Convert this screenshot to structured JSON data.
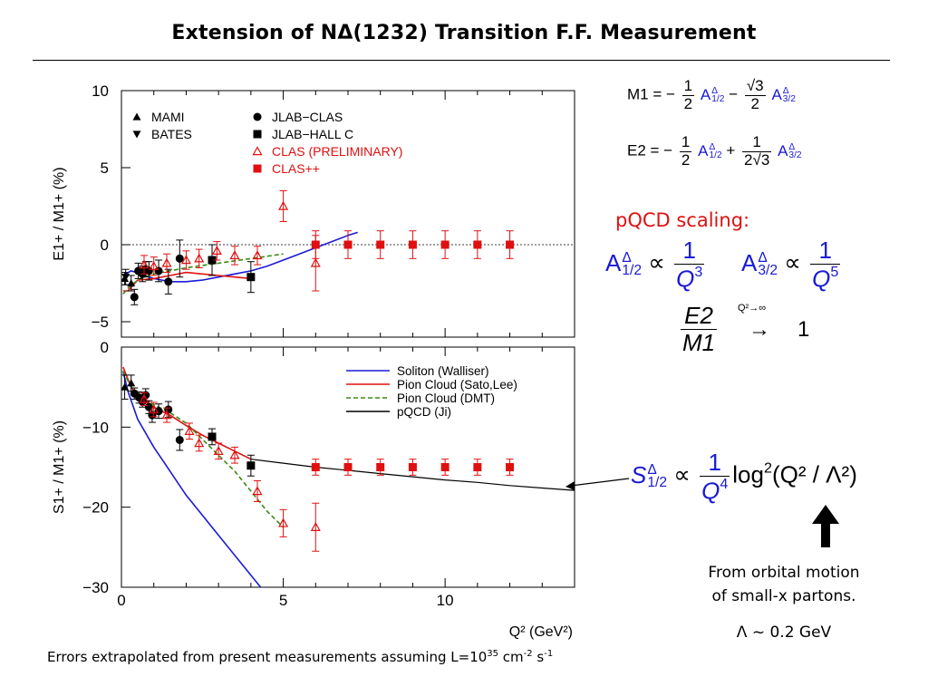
{
  "slide": {
    "title": "Extension of NΔ(1232) Transition F.F. Measurement",
    "footer_pre": "Errors extrapolated from present measurements assuming L=10",
    "footer_exp1": "35",
    "footer_mid": " cm",
    "footer_exp2": "-2",
    "footer_mid2": " s",
    "footer_exp3": "-1"
  },
  "equations": {
    "m1_lhs": "M1 = −",
    "e2_lhs": "E2 = −",
    "half_num": "1",
    "half_den": "2",
    "sqrt3_num": "√3",
    "amp_symbol": "A",
    "delta": "Δ",
    "sub_half": "1/2",
    "sub_threehalf": "3/2",
    "minus": "−",
    "plus": "+",
    "one": "1",
    "two_sqrt3": "2√3",
    "pqcd_scaling": "pQCD scaling:",
    "propto": "∝",
    "q3": "Q",
    "q3_exp": "3",
    "q5_exp": "5",
    "q4_exp": "4",
    "ratio_num": "E2",
    "ratio_den": "M1",
    "limit_label": "Q²→∞",
    "arrow": "→",
    "limit_value": "1",
    "s_symbol": "S",
    "log_text": "log",
    "log_exp": "2",
    "log_arg": "(Q² / Λ²)",
    "orbital_line1": "From orbital motion",
    "orbital_line2": "of small-x partons.",
    "lambda_value": "Λ ~ 0.2 GeV"
  },
  "chart_data": [
    {
      "type": "scatter",
      "ylabel": "E1+ / M1+ (%)",
      "ylim": [
        -6,
        10
      ],
      "xlim": [
        0,
        14
      ],
      "yticks": [
        10,
        5,
        0,
        -5
      ],
      "legend": [
        {
          "name": "MAMI",
          "marker": "triangle-up",
          "color": "#000000"
        },
        {
          "name": "BATES",
          "marker": "triangle-down",
          "color": "#000000"
        },
        {
          "name": "JLAB−CLAS",
          "marker": "circle",
          "color": "#000000"
        },
        {
          "name": "JLAB−HALL C",
          "marker": "square",
          "color": "#000000"
        },
        {
          "name": "CLAS (PRELIMINARY)",
          "marker": "triangle-open",
          "color": "#e01010"
        },
        {
          "name": "CLAS++",
          "marker": "square",
          "color": "#e01010"
        }
      ],
      "points": [
        {
          "marker": "triangle-up",
          "color": "#000000",
          "x": 0.1,
          "y": -2.2,
          "err": 0.4
        },
        {
          "marker": "triangle-down",
          "color": "#000000",
          "x": 0.13,
          "y": -2.1,
          "err": 0.5
        },
        {
          "marker": "triangle-up",
          "color": "#000000",
          "x": 0.3,
          "y": -2.5,
          "err": 0.5
        },
        {
          "marker": "circle",
          "color": "#000000",
          "x": 0.4,
          "y": -3.4,
          "err": 0.5
        },
        {
          "marker": "circle",
          "color": "#000000",
          "x": 0.52,
          "y": -1.7,
          "err": 0.5
        },
        {
          "marker": "circle",
          "color": "#000000",
          "x": 0.65,
          "y": -1.9,
          "err": 0.5
        },
        {
          "marker": "circle",
          "color": "#000000",
          "x": 0.75,
          "y": -1.6,
          "err": 0.5
        },
        {
          "marker": "circle",
          "color": "#000000",
          "x": 0.85,
          "y": -1.7,
          "err": 0.6
        },
        {
          "marker": "circle",
          "color": "#000000",
          "x": 1.15,
          "y": -1.7,
          "err": 0.7
        },
        {
          "marker": "circle",
          "color": "#000000",
          "x": 1.45,
          "y": -2.4,
          "err": 0.8
        },
        {
          "marker": "circle",
          "color": "#000000",
          "x": 1.8,
          "y": -0.9,
          "err": 1.2
        },
        {
          "marker": "square",
          "color": "#000000",
          "x": 2.8,
          "y": -1.0,
          "err": 1.0
        },
        {
          "marker": "square",
          "color": "#000000",
          "x": 4.0,
          "y": -2.1,
          "err": 1.0
        },
        {
          "marker": "triangle-open",
          "color": "#e01010",
          "x": 0.7,
          "y": -1.3,
          "err": 0.6
        },
        {
          "marker": "triangle-open",
          "color": "#e01010",
          "x": 1.0,
          "y": -1.4,
          "err": 0.6
        },
        {
          "marker": "triangle-open",
          "color": "#e01010",
          "x": 1.4,
          "y": -1.2,
          "err": 0.6
        },
        {
          "marker": "triangle-open",
          "color": "#e01010",
          "x": 2.0,
          "y": -1.0,
          "err": 0.6
        },
        {
          "marker": "triangle-open",
          "color": "#e01010",
          "x": 2.4,
          "y": -0.9,
          "err": 0.6
        },
        {
          "marker": "triangle-open",
          "color": "#e01010",
          "x": 2.95,
          "y": -0.4,
          "err": 0.6
        },
        {
          "marker": "triangle-open",
          "color": "#e01010",
          "x": 3.5,
          "y": -0.7,
          "err": 0.6
        },
        {
          "marker": "triangle-open",
          "color": "#e01010",
          "x": 4.2,
          "y": -0.7,
          "err": 0.6
        },
        {
          "marker": "triangle-open",
          "color": "#e01010",
          "x": 5.0,
          "y": 2.5,
          "err": 1.0
        },
        {
          "marker": "triangle-open",
          "color": "#e01010",
          "x": 6.0,
          "y": -1.2,
          "err": 1.8
        },
        {
          "marker": "square",
          "color": "#e01010",
          "x": 6.0,
          "y": 0.0,
          "err": 0.9
        },
        {
          "marker": "square",
          "color": "#e01010",
          "x": 7.0,
          "y": 0.0,
          "err": 0.9
        },
        {
          "marker": "square",
          "color": "#e01010",
          "x": 8.0,
          "y": 0.0,
          "err": 0.9
        },
        {
          "marker": "square",
          "color": "#e01010",
          "x": 9.0,
          "y": 0.0,
          "err": 0.9
        },
        {
          "marker": "square",
          "color": "#e01010",
          "x": 10.0,
          "y": 0.0,
          "err": 0.9
        },
        {
          "marker": "square",
          "color": "#e01010",
          "x": 11.0,
          "y": 0.0,
          "err": 0.9
        },
        {
          "marker": "square",
          "color": "#e01010",
          "x": 12.0,
          "y": 0.0,
          "err": 0.9
        }
      ],
      "curves": [
        {
          "model": "soliton",
          "color": "#1a1ad6",
          "dash": "",
          "x": [
            0.05,
            0.3,
            0.6,
            1.0,
            1.5,
            2.0,
            2.5,
            3.0,
            3.5,
            4.0,
            4.5,
            5.0,
            5.5,
            6.0,
            6.5,
            7.0,
            7.3
          ],
          "y": [
            -2.0,
            -1.7,
            -1.9,
            -2.2,
            -2.4,
            -2.4,
            -2.3,
            -2.1,
            -1.9,
            -1.7,
            -1.4,
            -1.0,
            -0.6,
            -0.2,
            0.2,
            0.6,
            0.8
          ]
        },
        {
          "model": "sato-lee",
          "color": "#e01010",
          "dash": "",
          "x": [
            0.05,
            0.2,
            0.5,
            1.0,
            1.5,
            2.0,
            2.5,
            3.0,
            3.5,
            4.0
          ],
          "y": [
            -3.0,
            -3.0,
            -2.3,
            -2.2,
            -2.0,
            -1.8,
            -1.9,
            -2.0,
            -2.1,
            -2.2
          ]
        },
        {
          "model": "dmt",
          "color": "#3a8a10",
          "dash": "5,3",
          "x": [
            0.05,
            0.3,
            0.6,
            1.0,
            1.5,
            2.0,
            3.0,
            4.0,
            5.0
          ],
          "y": [
            -3.2,
            -2.6,
            -2.2,
            -1.9,
            -1.7,
            -1.5,
            -1.2,
            -0.9,
            -0.6
          ]
        }
      ]
    },
    {
      "type": "scatter",
      "ylabel": "S1+ / M1+ (%)",
      "xlabel": "Q² (GeV²)",
      "ylim": [
        -30,
        0
      ],
      "xlim": [
        0,
        14
      ],
      "yticks": [
        0,
        -10,
        -20,
        -30
      ],
      "xticks": [
        0,
        5,
        10
      ],
      "legend": [
        {
          "name": "Soliton (Walliser)",
          "color": "#1a1ad6",
          "dash": ""
        },
        {
          "name": "Pion Cloud (Sato,Lee)",
          "color": "#e01010",
          "dash": ""
        },
        {
          "name": "Pion Cloud (DMT)",
          "color": "#3a8a10",
          "dash": "5,3"
        },
        {
          "name": "pQCD (Ji)",
          "color": "#000000",
          "dash": ""
        }
      ],
      "points": [
        {
          "marker": "triangle-up",
          "color": "#000000",
          "x": 0.1,
          "y": -5.0,
          "err": 1.5
        },
        {
          "marker": "triangle-up",
          "color": "#000000",
          "x": 0.3,
          "y": -4.5,
          "err": 1.0
        },
        {
          "marker": "circle",
          "color": "#000000",
          "x": 0.4,
          "y": -5.8,
          "err": 0.7
        },
        {
          "marker": "circle",
          "color": "#000000",
          "x": 0.55,
          "y": -6.3,
          "err": 0.7
        },
        {
          "marker": "circle",
          "color": "#000000",
          "x": 0.65,
          "y": -6.8,
          "err": 0.7
        },
        {
          "marker": "circle",
          "color": "#000000",
          "x": 0.75,
          "y": -6.0,
          "err": 0.8
        },
        {
          "marker": "circle",
          "color": "#000000",
          "x": 0.85,
          "y": -7.5,
          "err": 0.8
        },
        {
          "marker": "circle",
          "color": "#000000",
          "x": 0.95,
          "y": -8.5,
          "err": 0.9
        },
        {
          "marker": "circle",
          "color": "#000000",
          "x": 1.15,
          "y": -8.0,
          "err": 0.9
        },
        {
          "marker": "circle",
          "color": "#000000",
          "x": 1.45,
          "y": -7.8,
          "err": 1.0
        },
        {
          "marker": "circle",
          "color": "#000000",
          "x": 1.8,
          "y": -11.6,
          "err": 1.3
        },
        {
          "marker": "square",
          "color": "#000000",
          "x": 2.8,
          "y": -11.2,
          "err": 1.0
        },
        {
          "marker": "square",
          "color": "#000000",
          "x": 4.0,
          "y": -14.8,
          "err": 1.3
        },
        {
          "marker": "triangle-open",
          "color": "#e01010",
          "x": 0.7,
          "y": -6.5,
          "err": 0.8
        },
        {
          "marker": "triangle-open",
          "color": "#e01010",
          "x": 1.0,
          "y": -7.8,
          "err": 0.9
        },
        {
          "marker": "triangle-open",
          "color": "#e01010",
          "x": 1.4,
          "y": -8.5,
          "err": 0.9
        },
        {
          "marker": "triangle-open",
          "color": "#e01010",
          "x": 2.1,
          "y": -10.5,
          "err": 1.0
        },
        {
          "marker": "triangle-open",
          "color": "#e01010",
          "x": 2.4,
          "y": -12.0,
          "err": 1.0
        },
        {
          "marker": "triangle-open",
          "color": "#e01010",
          "x": 3.0,
          "y": -13.0,
          "err": 1.0
        },
        {
          "marker": "triangle-open",
          "color": "#e01010",
          "x": 3.5,
          "y": -13.5,
          "err": 1.0
        },
        {
          "marker": "triangle-open",
          "color": "#e01010",
          "x": 4.2,
          "y": -18.0,
          "err": 1.3
        },
        {
          "marker": "triangle-open",
          "color": "#e01010",
          "x": 5.0,
          "y": -22.0,
          "err": 1.7
        },
        {
          "marker": "triangle-open",
          "color": "#e01010",
          "x": 6.0,
          "y": -22.5,
          "err": 3.0
        },
        {
          "marker": "square",
          "color": "#e01010",
          "x": 6.0,
          "y": -15.0,
          "err": 1.0
        },
        {
          "marker": "square",
          "color": "#e01010",
          "x": 7.0,
          "y": -15.0,
          "err": 1.0
        },
        {
          "marker": "square",
          "color": "#e01010",
          "x": 8.0,
          "y": -15.0,
          "err": 1.0
        },
        {
          "marker": "square",
          "color": "#e01010",
          "x": 9.0,
          "y": -15.0,
          "err": 1.0
        },
        {
          "marker": "square",
          "color": "#e01010",
          "x": 10.0,
          "y": -15.0,
          "err": 1.0
        },
        {
          "marker": "square",
          "color": "#e01010",
          "x": 11.0,
          "y": -15.0,
          "err": 1.0
        },
        {
          "marker": "square",
          "color": "#e01010",
          "x": 12.0,
          "y": -15.0,
          "err": 1.0
        }
      ],
      "curves": [
        {
          "model": "soliton",
          "color": "#1a1ad6",
          "dash": "",
          "x": [
            0.05,
            0.2,
            0.5,
            1.0,
            1.5,
            2.0,
            2.5,
            3.0,
            3.5,
            4.0,
            4.3
          ],
          "y": [
            -3.0,
            -5.5,
            -9.0,
            -12.5,
            -15.5,
            -18.5,
            -21.0,
            -23.5,
            -26.0,
            -28.5,
            -30.0
          ]
        },
        {
          "model": "sato-lee",
          "color": "#e01010",
          "dash": "",
          "x": [
            0.05,
            0.3,
            0.6,
            1.0,
            1.5,
            2.0,
            2.5,
            3.0,
            3.5,
            4.0
          ],
          "y": [
            -2.5,
            -5.0,
            -6.5,
            -7.5,
            -8.5,
            -9.8,
            -11.0,
            -12.0,
            -13.0,
            -14.0
          ]
        },
        {
          "model": "dmt",
          "color": "#3a8a10",
          "dash": "5,3",
          "x": [
            0.05,
            0.3,
            0.6,
            1.0,
            1.5,
            2.0,
            2.5,
            3.0,
            3.5,
            4.0,
            4.5,
            5.0
          ],
          "y": [
            -3.0,
            -5.0,
            -6.2,
            -7.2,
            -8.2,
            -9.5,
            -11.5,
            -13.5,
            -15.5,
            -18.0,
            -20.5,
            -22.5
          ]
        },
        {
          "model": "pqcd",
          "color": "#000000",
          "dash": "",
          "x": [
            4.0,
            5.0,
            6.0,
            7.0,
            8.0,
            9.0,
            10.0,
            11.0,
            12.0,
            13.0,
            14.0
          ],
          "y": [
            -14.0,
            -14.5,
            -15.0,
            -15.4,
            -15.8,
            -16.2,
            -16.6,
            -16.9,
            -17.3,
            -17.6,
            -17.9
          ]
        }
      ]
    }
  ]
}
